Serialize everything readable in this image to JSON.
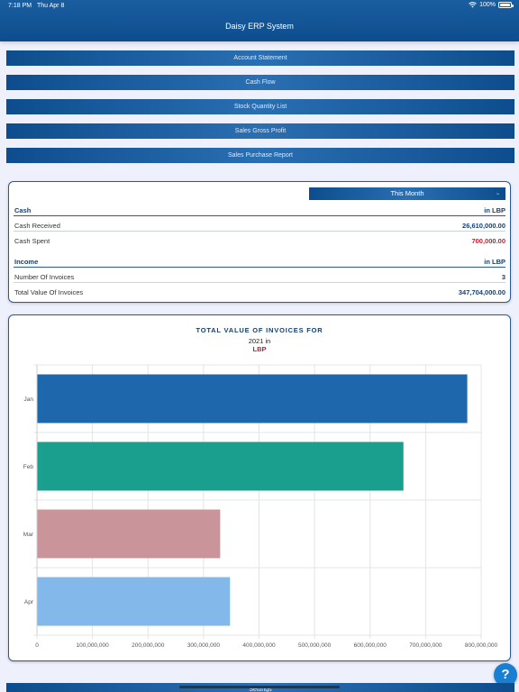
{
  "status": {
    "time": "7:18 PM",
    "date": "Thu Apr 8",
    "battery": "100%",
    "wifi_icon": "wifi-icon",
    "battery_icon": "battery-icon"
  },
  "header": {
    "title": "Daisy ERP System"
  },
  "menu": [
    {
      "label": "Account Statement"
    },
    {
      "label": "Cash Flow"
    },
    {
      "label": "Stock Quantity List"
    },
    {
      "label": "Sales Gross Profit"
    },
    {
      "label": "Sales Purchase Report"
    }
  ],
  "summary": {
    "period": "This Month",
    "cash": {
      "heading": "Cash",
      "unit": "in LBP",
      "received_label": "Cash Received",
      "received_value": "26,610,000.00",
      "spent_label": "Cash Spent",
      "spent_value": "700,000.00"
    },
    "income": {
      "heading": "Income",
      "unit": "in LBP",
      "invoices_label": "Number Of Invoices",
      "invoices_value": "3",
      "total_label": "Total Value Of Invoices",
      "total_value": "347,704,000.00"
    }
  },
  "chart": {
    "title": "TOTAL VALUE OF INVOICES FOR",
    "subtitle": "2021 in",
    "unit": "LBP"
  },
  "chart_data": {
    "type": "bar",
    "orientation": "horizontal",
    "categories": [
      "Jan",
      "Feb",
      "Mar",
      "Apr"
    ],
    "values": [
      775000000,
      660000000,
      330000000,
      347704000
    ],
    "colors": [
      "#1f67ad",
      "#1a9e8e",
      "#c9959a",
      "#82b8ea"
    ],
    "xlim": [
      0,
      800000000
    ],
    "x_ticks": [
      "0",
      "100,000,000",
      "200,000,000",
      "300,000,000",
      "400,000,000",
      "500,000,000",
      "600,000,000",
      "700,000,000",
      "800,000,000"
    ],
    "grid": true,
    "title": "TOTAL VALUE OF INVOICES FOR"
  },
  "footer": {
    "button_label": "Settings",
    "help_label": "?"
  }
}
